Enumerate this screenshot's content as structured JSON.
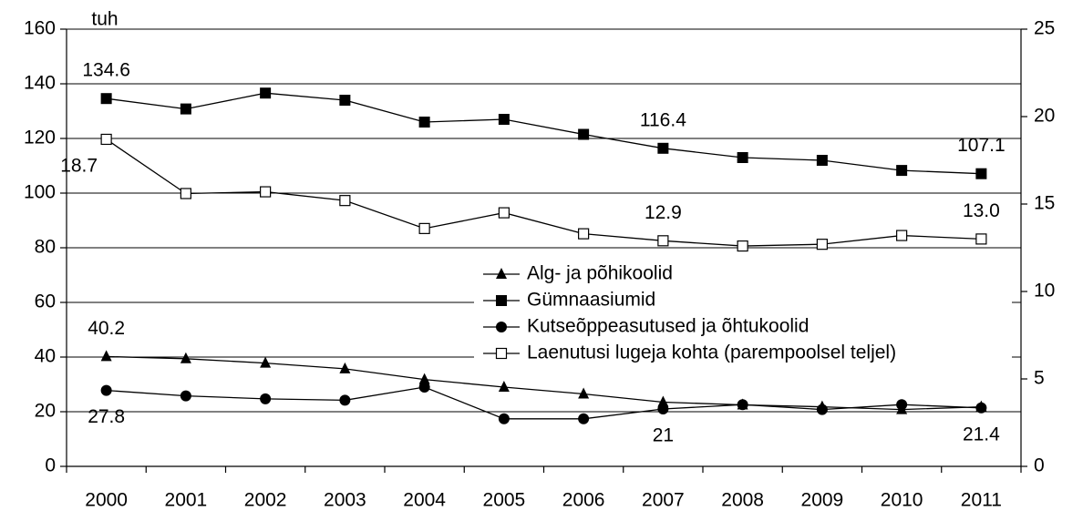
{
  "chart_data": {
    "type": "line",
    "y_unit_label": "tuh",
    "categories": [
      "2000",
      "2001",
      "2002",
      "2003",
      "2004",
      "2005",
      "2006",
      "2007",
      "2008",
      "2009",
      "2010",
      "2011"
    ],
    "ylim": [
      0,
      160
    ],
    "yticks": [
      0,
      20,
      40,
      60,
      80,
      100,
      120,
      140,
      160
    ],
    "y2lim": [
      0,
      25
    ],
    "y2ticks": [
      0,
      5,
      10,
      15,
      20,
      25
    ],
    "grid": true,
    "legend": "center-right",
    "series": [
      {
        "name": "Alg- ja põhikoolid",
        "color": "#000000",
        "marker": "triangle",
        "values": [
          40.2,
          39.4,
          37.8,
          35.7,
          31.8,
          29.0,
          26.5,
          23.5,
          22.5,
          21.8,
          20.8,
          21.8
        ],
        "value_labels": [
          "40.2",
          null,
          null,
          null,
          null,
          null,
          null,
          null,
          null,
          null,
          null,
          null
        ]
      },
      {
        "name": "Gümnaasiumid",
        "color": "#000000",
        "marker": "square",
        "values": [
          134.6,
          130.8,
          136.6,
          134.0,
          126.0,
          127.0,
          121.5,
          116.4,
          113.0,
          112.0,
          108.3,
          107.1
        ],
        "value_labels": [
          "134.6",
          null,
          null,
          null,
          null,
          null,
          null,
          "116.4",
          null,
          null,
          null,
          "107.1"
        ]
      },
      {
        "name": "Kutseõppeasutused ja õhtukoolid",
        "color": "#000000",
        "marker": "circle",
        "values": [
          27.8,
          25.8,
          24.7,
          24.2,
          29.0,
          17.4,
          17.4,
          21,
          22.6,
          20.8,
          22.6,
          21.4
        ],
        "value_labels": [
          "27.8",
          null,
          null,
          null,
          null,
          null,
          null,
          "21",
          null,
          null,
          null,
          "21.4"
        ]
      },
      {
        "name": "Laenutusi lugeja kohta (parempoolsel teljel)",
        "color": "#000000",
        "marker": "open-square",
        "axis": "y2",
        "values": [
          18.7,
          15.6,
          15.7,
          15.2,
          13.6,
          14.5,
          13.3,
          12.9,
          12.6,
          12.7,
          13.2,
          13.0
        ],
        "value_labels": [
          "18.7",
          null,
          null,
          null,
          null,
          null,
          null,
          "12.9",
          null,
          null,
          null,
          "13.0"
        ]
      }
    ]
  }
}
